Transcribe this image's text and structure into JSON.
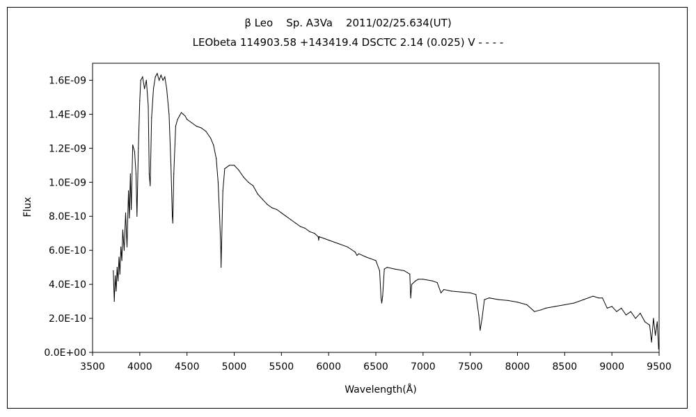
{
  "chart_data": {
    "type": "line",
    "title": "β Leo    Sp. A3Va    2011/02/25.634(UT)",
    "subtitle": "LEObeta 114903.58 +143419.4 DSCTC 2.14 (0.025) V - - - -",
    "xlabel": "Wavelength(Å)",
    "ylabel": "Flux",
    "xlim": [
      3500,
      9500
    ],
    "ylim": [
      0,
      1.7e-09
    ],
    "grid": false,
    "x_ticks": [
      "3500",
      "4000",
      "4500",
      "5000",
      "5500",
      "6000",
      "6500",
      "7000",
      "7500",
      "8000",
      "8500",
      "9000",
      "9500"
    ],
    "y_ticks": [
      "0.0E+00",
      "2.0E-10",
      "4.0E-10",
      "6.0E-10",
      "8.0E-10",
      "1.0E-09",
      "1.2E-09",
      "1.4E-09",
      "1.6E-09"
    ],
    "series": [
      {
        "line_color": "#000000",
        "points": [
          [
            3720,
            4.8e-10
          ],
          [
            3730,
            3e-10
          ],
          [
            3740,
            4.5e-10
          ],
          [
            3750,
            3.6e-10
          ],
          [
            3760,
            5e-10
          ],
          [
            3770,
            4.2e-10
          ],
          [
            3780,
            5.6e-10
          ],
          [
            3790,
            4.6e-10
          ],
          [
            3800,
            6.2e-10
          ],
          [
            3810,
            5.4e-10
          ],
          [
            3820,
            7.2e-10
          ],
          [
            3835,
            6e-10
          ],
          [
            3850,
            8.2e-10
          ],
          [
            3865,
            6.2e-10
          ],
          [
            3880,
            9.5e-10
          ],
          [
            3890,
            7.9e-10
          ],
          [
            3900,
            1.05e-09
          ],
          [
            3910,
            8.4e-10
          ],
          [
            3925,
            1.22e-09
          ],
          [
            3945,
            1.18e-09
          ],
          [
            3960,
            1.05e-09
          ],
          [
            3970,
            8e-10
          ],
          [
            3985,
            1.2e-09
          ],
          [
            4000,
            1.48e-09
          ],
          [
            4010,
            1.6e-09
          ],
          [
            4030,
            1.62e-09
          ],
          [
            4050,
            1.55e-09
          ],
          [
            4070,
            1.6e-09
          ],
          [
            4090,
            1.45e-09
          ],
          [
            4100,
            1.05e-09
          ],
          [
            4110,
            9.8e-10
          ],
          [
            4125,
            1.38e-09
          ],
          [
            4145,
            1.55e-09
          ],
          [
            4165,
            1.62e-09
          ],
          [
            4185,
            1.64e-09
          ],
          [
            4205,
            1.6e-09
          ],
          [
            4225,
            1.63e-09
          ],
          [
            4245,
            1.6e-09
          ],
          [
            4265,
            1.62e-09
          ],
          [
            4285,
            1.55e-09
          ],
          [
            4310,
            1.4e-09
          ],
          [
            4330,
            1.1e-09
          ],
          [
            4345,
            8e-10
          ],
          [
            4350,
            7.6e-10
          ],
          [
            4360,
            1.05e-09
          ],
          [
            4380,
            1.33e-09
          ],
          [
            4400,
            1.37e-09
          ],
          [
            4420,
            1.39e-09
          ],
          [
            4440,
            1.41e-09
          ],
          [
            4460,
            1.4e-09
          ],
          [
            4480,
            1.39e-09
          ],
          [
            4500,
            1.37e-09
          ],
          [
            4550,
            1.35e-09
          ],
          [
            4600,
            1.33e-09
          ],
          [
            4650,
            1.32e-09
          ],
          [
            4700,
            1.3e-09
          ],
          [
            4750,
            1.26e-09
          ],
          [
            4780,
            1.22e-09
          ],
          [
            4810,
            1.14e-09
          ],
          [
            4830,
            1e-09
          ],
          [
            4845,
            8e-10
          ],
          [
            4858,
            6.2e-10
          ],
          [
            4861,
            5e-10
          ],
          [
            4867,
            6.5e-10
          ],
          [
            4880,
            9.5e-10
          ],
          [
            4900,
            1.08e-09
          ],
          [
            4950,
            1.1e-09
          ],
          [
            5000,
            1.1e-09
          ],
          [
            5050,
            1.07e-09
          ],
          [
            5100,
            1.03e-09
          ],
          [
            5150,
            1e-09
          ],
          [
            5200,
            9.8e-10
          ],
          [
            5250,
            9.3e-10
          ],
          [
            5300,
            9e-10
          ],
          [
            5350,
            8.7e-10
          ],
          [
            5400,
            8.5e-10
          ],
          [
            5450,
            8.4e-10
          ],
          [
            5500,
            8.2e-10
          ],
          [
            5550,
            8e-10
          ],
          [
            5600,
            7.8e-10
          ],
          [
            5650,
            7.6e-10
          ],
          [
            5700,
            7.4e-10
          ],
          [
            5750,
            7.3e-10
          ],
          [
            5800,
            7.1e-10
          ],
          [
            5850,
            7e-10
          ],
          [
            5890,
            6.8e-10
          ],
          [
            5895,
            6.6e-10
          ],
          [
            5900,
            6.8e-10
          ],
          [
            5950,
            6.7e-10
          ],
          [
            6000,
            6.6e-10
          ],
          [
            6100,
            6.4e-10
          ],
          [
            6200,
            6.2e-10
          ],
          [
            6280,
            5.9e-10
          ],
          [
            6300,
            5.7e-10
          ],
          [
            6320,
            5.8e-10
          ],
          [
            6400,
            5.6e-10
          ],
          [
            6500,
            5.4e-10
          ],
          [
            6540,
            4.8e-10
          ],
          [
            6555,
            3.2e-10
          ],
          [
            6563,
            2.9e-10
          ],
          [
            6572,
            3.3e-10
          ],
          [
            6590,
            4.9e-10
          ],
          [
            6620,
            5e-10
          ],
          [
            6700,
            4.9e-10
          ],
          [
            6800,
            4.8e-10
          ],
          [
            6860,
            4.6e-10
          ],
          [
            6869,
            3.2e-10
          ],
          [
            6880,
            4e-10
          ],
          [
            6920,
            4.2e-10
          ],
          [
            6950,
            4.3e-10
          ],
          [
            7000,
            4.3e-10
          ],
          [
            7100,
            4.2e-10
          ],
          [
            7150,
            4.1e-10
          ],
          [
            7190,
            3.5e-10
          ],
          [
            7220,
            3.7e-10
          ],
          [
            7300,
            3.6e-10
          ],
          [
            7400,
            3.55e-10
          ],
          [
            7500,
            3.5e-10
          ],
          [
            7560,
            3.4e-10
          ],
          [
            7590,
            2.2e-10
          ],
          [
            7605,
            1.3e-10
          ],
          [
            7625,
            2e-10
          ],
          [
            7650,
            3.1e-10
          ],
          [
            7700,
            3.2e-10
          ],
          [
            7800,
            3.1e-10
          ],
          [
            7900,
            3.05e-10
          ],
          [
            8000,
            2.95e-10
          ],
          [
            8100,
            2.8e-10
          ],
          [
            8180,
            2.4e-10
          ],
          [
            8250,
            2.5e-10
          ],
          [
            8300,
            2.6e-10
          ],
          [
            8400,
            2.7e-10
          ],
          [
            8500,
            2.8e-10
          ],
          [
            8600,
            2.9e-10
          ],
          [
            8700,
            3.1e-10
          ],
          [
            8800,
            3.3e-10
          ],
          [
            8860,
            3.2e-10
          ],
          [
            8900,
            3.2e-10
          ],
          [
            8950,
            2.6e-10
          ],
          [
            9000,
            2.7e-10
          ],
          [
            9050,
            2.4e-10
          ],
          [
            9100,
            2.6e-10
          ],
          [
            9150,
            2.2e-10
          ],
          [
            9200,
            2.4e-10
          ],
          [
            9250,
            2e-10
          ],
          [
            9300,
            2.3e-10
          ],
          [
            9350,
            1.8e-10
          ],
          [
            9400,
            1.6e-10
          ],
          [
            9420,
            6e-11
          ],
          [
            9440,
            2e-10
          ],
          [
            9460,
            1e-10
          ],
          [
            9480,
            1.8e-10
          ],
          [
            9495,
            2e-11
          ]
        ]
      }
    ]
  }
}
